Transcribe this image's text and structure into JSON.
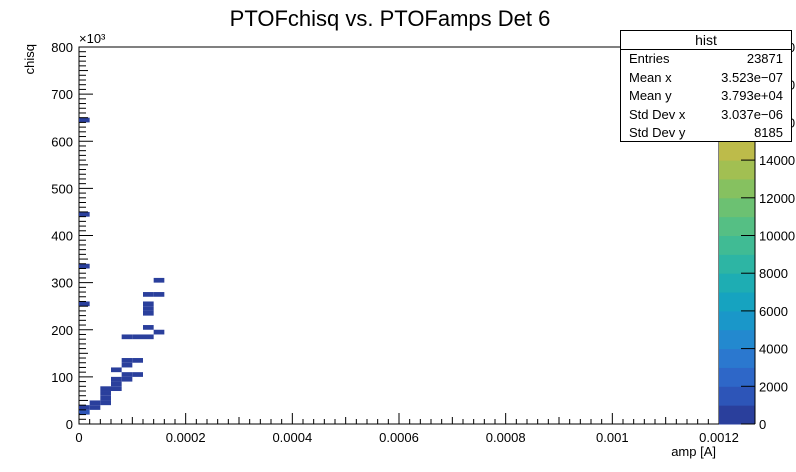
{
  "chart_data": {
    "type": "heatmap",
    "title": "PTOFchisq vs. PTOFamps Det 6",
    "xlabel": "amp [A]",
    "ylabel": "chisq",
    "y_exponent": "×10³",
    "xlim": [
      0,
      0.0012
    ],
    "ylim": [
      0,
      800
    ],
    "x_ticks": [
      "0",
      "0.0002",
      "0.0004",
      "0.0006",
      "0.0008",
      "0.001",
      "0.0012"
    ],
    "y_ticks": [
      "0",
      "100",
      "200",
      "300",
      "400",
      "500",
      "600",
      "700",
      "800"
    ],
    "colorbar": {
      "range": [
        0,
        20000
      ],
      "ticks": [
        "0",
        "2000",
        "4000",
        "6000",
        "8000",
        "10000",
        "12000",
        "14000",
        "16000",
        "18000",
        "20000"
      ],
      "colors": [
        "#2a3f9c",
        "#2d55b8",
        "#2e67c8",
        "#2b78cf",
        "#2389cf",
        "#1a97c9",
        "#16a3c0",
        "#1eadb3",
        "#2db5a4",
        "#40bb94",
        "#55bf84",
        "#6cc172",
        "#86c160",
        "#a2bf52",
        "#bdbb4a",
        "#d2b648",
        "#e0b044",
        "#e8a73e",
        "#eda13a",
        "#f2a136"
      ]
    },
    "cells": [
      {
        "x": 1e-05,
        "y": 25,
        "count": 1200
      },
      {
        "x": 1e-05,
        "y": 35,
        "count": 900
      },
      {
        "x": 3e-05,
        "y": 35,
        "count": 700
      },
      {
        "x": 3e-05,
        "y": 45,
        "count": 600
      },
      {
        "x": 5e-05,
        "y": 45,
        "count": 500
      },
      {
        "x": 5e-05,
        "y": 55,
        "count": 400
      },
      {
        "x": 5e-05,
        "y": 65,
        "count": 350
      },
      {
        "x": 5e-05,
        "y": 75,
        "count": 300
      },
      {
        "x": 7e-05,
        "y": 75,
        "count": 300
      },
      {
        "x": 7e-05,
        "y": 85,
        "count": 250
      },
      {
        "x": 7e-05,
        "y": 95,
        "count": 250
      },
      {
        "x": 7e-05,
        "y": 115,
        "count": 200
      },
      {
        "x": 9e-05,
        "y": 95,
        "count": 200
      },
      {
        "x": 9e-05,
        "y": 105,
        "count": 200
      },
      {
        "x": 9e-05,
        "y": 125,
        "count": 200
      },
      {
        "x": 9e-05,
        "y": 135,
        "count": 150
      },
      {
        "x": 9e-05,
        "y": 185,
        "count": 150
      },
      {
        "x": 0.00011,
        "y": 105,
        "count": 150
      },
      {
        "x": 0.00011,
        "y": 135,
        "count": 150
      },
      {
        "x": 0.00011,
        "y": 185,
        "count": 150
      },
      {
        "x": 0.00013,
        "y": 185,
        "count": 150
      },
      {
        "x": 0.00013,
        "y": 205,
        "count": 150
      },
      {
        "x": 0.00013,
        "y": 235,
        "count": 150
      },
      {
        "x": 0.00013,
        "y": 245,
        "count": 150
      },
      {
        "x": 0.00013,
        "y": 255,
        "count": 120
      },
      {
        "x": 0.00013,
        "y": 275,
        "count": 120
      },
      {
        "x": 0.00015,
        "y": 195,
        "count": 120
      },
      {
        "x": 0.00015,
        "y": 275,
        "count": 120
      },
      {
        "x": 0.00015,
        "y": 305,
        "count": 120
      },
      {
        "x": 1e-05,
        "y": 255,
        "count": 100
      },
      {
        "x": 1e-05,
        "y": 335,
        "count": 100
      },
      {
        "x": 1e-05,
        "y": 445,
        "count": 100
      },
      {
        "x": 1e-05,
        "y": 645,
        "count": 100
      }
    ]
  },
  "stats": {
    "title": "hist",
    "rows": [
      {
        "label": "Entries",
        "value": "23871"
      },
      {
        "label": "Mean x",
        "value": "3.523e−07"
      },
      {
        "label": "Mean y",
        "value": "3.793e+04"
      },
      {
        "label": "Std Dev x",
        "value": "3.037e−06"
      },
      {
        "label": "Std Dev y",
        "value": "8185"
      }
    ]
  }
}
